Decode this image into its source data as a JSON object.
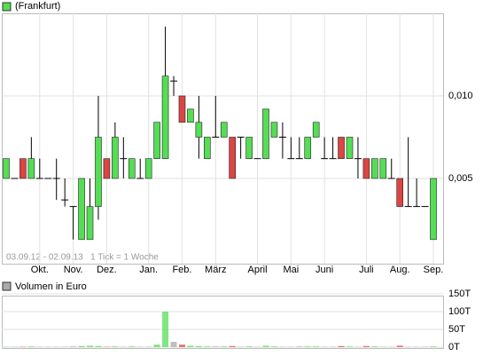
{
  "chart_data": [
    {
      "type": "candlestick",
      "series": [
        {
          "name": "(Frankfurt)",
          "color": "#55dd55",
          "open": [
            0.005,
            0.005,
            0.0062,
            0.005,
            0.005,
            0.005,
            0.005,
            0.0037,
            0.0033,
            0.0013,
            0.0013,
            0.0033,
            0.0062,
            0.005,
            0.0062,
            0.005,
            0.005,
            0.005,
            0.0062,
            0.0062,
            0.0109,
            0.01,
            0.0084,
            0.0075,
            0.0062,
            0.0075,
            0.0075,
            0.0075,
            0.0075,
            0.0062,
            0.0062,
            0.0062,
            0.0075,
            0.0075,
            0.0062,
            0.0062,
            0.0062,
            0.0075,
            0.0062,
            0.0062,
            0.0075,
            0.0062,
            0.0062,
            0.0062,
            0.005,
            0.005,
            0.005,
            0.005,
            0.0033,
            0.0033,
            0.0033,
            0.0013
          ],
          "high": [
            0.0062,
            0.005,
            0.0062,
            0.0075,
            0.0062,
            0.005,
            0.0062,
            0.005,
            0.0033,
            0.005,
            0.005,
            0.01,
            0.0062,
            0.0084,
            0.0075,
            0.0062,
            0.0062,
            0.0062,
            0.0084,
            0.0142,
            0.0112,
            0.01,
            0.0092,
            0.01,
            0.0075,
            0.01,
            0.0084,
            0.0075,
            0.0075,
            0.0075,
            0.0062,
            0.0092,
            0.0084,
            0.0084,
            0.0075,
            0.0075,
            0.0075,
            0.0084,
            0.0075,
            0.0075,
            0.0075,
            0.0075,
            0.0075,
            0.0062,
            0.0062,
            0.0062,
            0.0062,
            0.005,
            0.0075,
            0.005,
            0.0033,
            0.005
          ],
          "low": [
            0.005,
            0.005,
            0.005,
            0.005,
            0.005,
            0.005,
            0.0037,
            0.0033,
            0.0013,
            0.0013,
            0.0013,
            0.0025,
            0.005,
            0.005,
            0.005,
            0.005,
            0.005,
            0.005,
            0.0062,
            0.0062,
            0.01,
            0.0084,
            0.0084,
            0.0062,
            0.0062,
            0.0075,
            0.0075,
            0.005,
            0.0062,
            0.0062,
            0.0062,
            0.0062,
            0.0075,
            0.0062,
            0.0062,
            0.0062,
            0.0062,
            0.0075,
            0.0062,
            0.0062,
            0.0062,
            0.0062,
            0.005,
            0.005,
            0.005,
            0.005,
            0.005,
            0.0033,
            0.0033,
            0.0033,
            0.0033,
            0.0013
          ],
          "close": [
            0.0062,
            0.005,
            0.005,
            0.0062,
            0.005,
            0.005,
            0.005,
            0.0037,
            0.0033,
            0.005,
            0.0033,
            0.0075,
            0.005,
            0.0075,
            0.0062,
            0.0062,
            0.005,
            0.0062,
            0.0084,
            0.0112,
            0.0109,
            0.0084,
            0.0092,
            0.0084,
            0.0075,
            0.0075,
            0.0084,
            0.005,
            0.0075,
            0.0075,
            0.0062,
            0.0092,
            0.0084,
            0.0075,
            0.0062,
            0.0062,
            0.0075,
            0.0084,
            0.0062,
            0.0062,
            0.0062,
            0.0075,
            0.0062,
            0.005,
            0.0062,
            0.0062,
            0.005,
            0.0033,
            0.0033,
            0.0033,
            0.0033,
            0.005
          ]
        }
      ],
      "up_color": "#55dd55",
      "down_color": "#dd4444",
      "flat_color": "#000000",
      "categories": [
        null,
        null,
        null,
        null,
        "Okt.",
        null,
        null,
        null,
        "Nov.",
        null,
        null,
        null,
        "Dez.",
        null,
        null,
        null,
        null,
        "Jan.",
        null,
        null,
        null,
        "Feb.",
        null,
        null,
        null,
        "März",
        null,
        null,
        null,
        null,
        "April",
        null,
        null,
        null,
        "Mai",
        null,
        null,
        null,
        "Juni",
        null,
        null,
        null,
        null,
        "Juli",
        null,
        null,
        null,
        "Aug.",
        null,
        null,
        null,
        "Sep."
      ],
      "ylim": [
        0,
        0.015
      ],
      "yticks": [
        {
          "value": 0.005,
          "label": "0,005"
        },
        {
          "value": 0.01,
          "label": "0,010"
        }
      ],
      "note": "03.09.12 - 02.09.13   1 Tick = 1 Woche",
      "grid": true
    },
    {
      "type": "bar",
      "series": [
        {
          "name": "Volumen in Euro",
          "color": "#aaaaaa",
          "values": [
            1,
            1,
            1,
            2,
            1,
            1,
            1,
            1,
            2,
            3,
            4,
            3,
            1,
            2,
            1,
            2,
            1,
            1,
            7,
            100,
            15,
            7,
            4,
            3,
            2,
            2,
            2,
            3,
            1,
            2,
            1,
            4,
            2,
            1,
            1,
            2,
            2,
            2,
            1,
            1,
            3,
            2,
            1,
            3,
            2,
            1,
            1,
            4,
            1,
            1,
            1,
            2
          ]
        }
      ],
      "ylim": [
        0,
        150
      ],
      "yticks": [
        {
          "value": 0,
          "label": "0T"
        },
        {
          "value": 50,
          "label": "50T"
        },
        {
          "value": 100,
          "label": "100T"
        },
        {
          "value": 150,
          "label": "150T"
        }
      ],
      "grid": true
    }
  ]
}
